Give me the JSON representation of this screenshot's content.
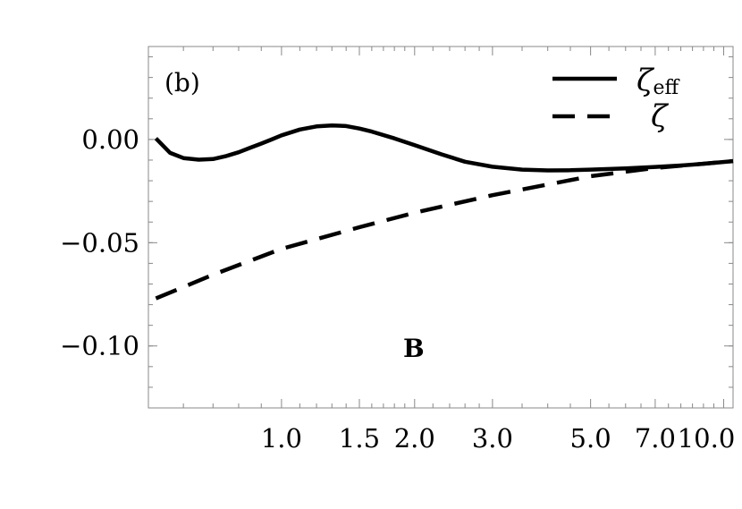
{
  "chart_data": {
    "type": "line",
    "panel_label": "(b)",
    "annotation": "B",
    "x_scale": "log",
    "xlim": [
      0.5,
      10.5
    ],
    "ylim": [
      -0.13,
      0.045
    ],
    "x_ticks": [
      1.0,
      1.5,
      2.0,
      3.0,
      5.0,
      7.0,
      10.0
    ],
    "x_tick_labels": [
      "1.0",
      "1.5",
      "2.0",
      "3.0",
      "5.0",
      "7.0",
      "10.0"
    ],
    "y_ticks": [
      0.0,
      -0.05,
      -0.1
    ],
    "y_tick_labels": [
      "0.00",
      "−0.05",
      "−0.10"
    ],
    "series": [
      {
        "name": "ζ",
        "name_subscript": "eff",
        "style": "solid",
        "x": [
          0.52,
          0.56,
          0.6,
          0.65,
          0.7,
          0.75,
          0.8,
          0.85,
          0.9,
          0.95,
          1.0,
          1.1,
          1.2,
          1.3,
          1.4,
          1.5,
          1.6,
          1.8,
          2.0,
          2.3,
          2.6,
          3.0,
          3.5,
          4.0,
          4.5,
          5.0,
          6.0,
          7.0,
          8.0,
          9.0,
          10.5
        ],
        "y": [
          0.0005,
          -0.0065,
          -0.009,
          -0.0098,
          -0.0095,
          -0.008,
          -0.0062,
          -0.004,
          -0.002,
          0.0,
          0.002,
          0.0048,
          0.0063,
          0.0068,
          0.0065,
          0.0053,
          0.0038,
          0.0005,
          -0.0028,
          -0.0072,
          -0.0108,
          -0.0132,
          -0.0146,
          -0.015,
          -0.0149,
          -0.0146,
          -0.014,
          -0.0133,
          -0.0126,
          -0.0118,
          -0.0105
        ]
      },
      {
        "name": "ζ",
        "style": "dashed",
        "x": [
          0.52,
          0.7,
          1.0,
          1.5,
          2.0,
          3.0,
          5.0,
          7.0,
          10.5
        ],
        "y": [
          -0.077,
          -0.0655,
          -0.053,
          -0.0425,
          -0.0355,
          -0.027,
          -0.0178,
          -0.0138,
          -0.0105
        ]
      }
    ]
  }
}
